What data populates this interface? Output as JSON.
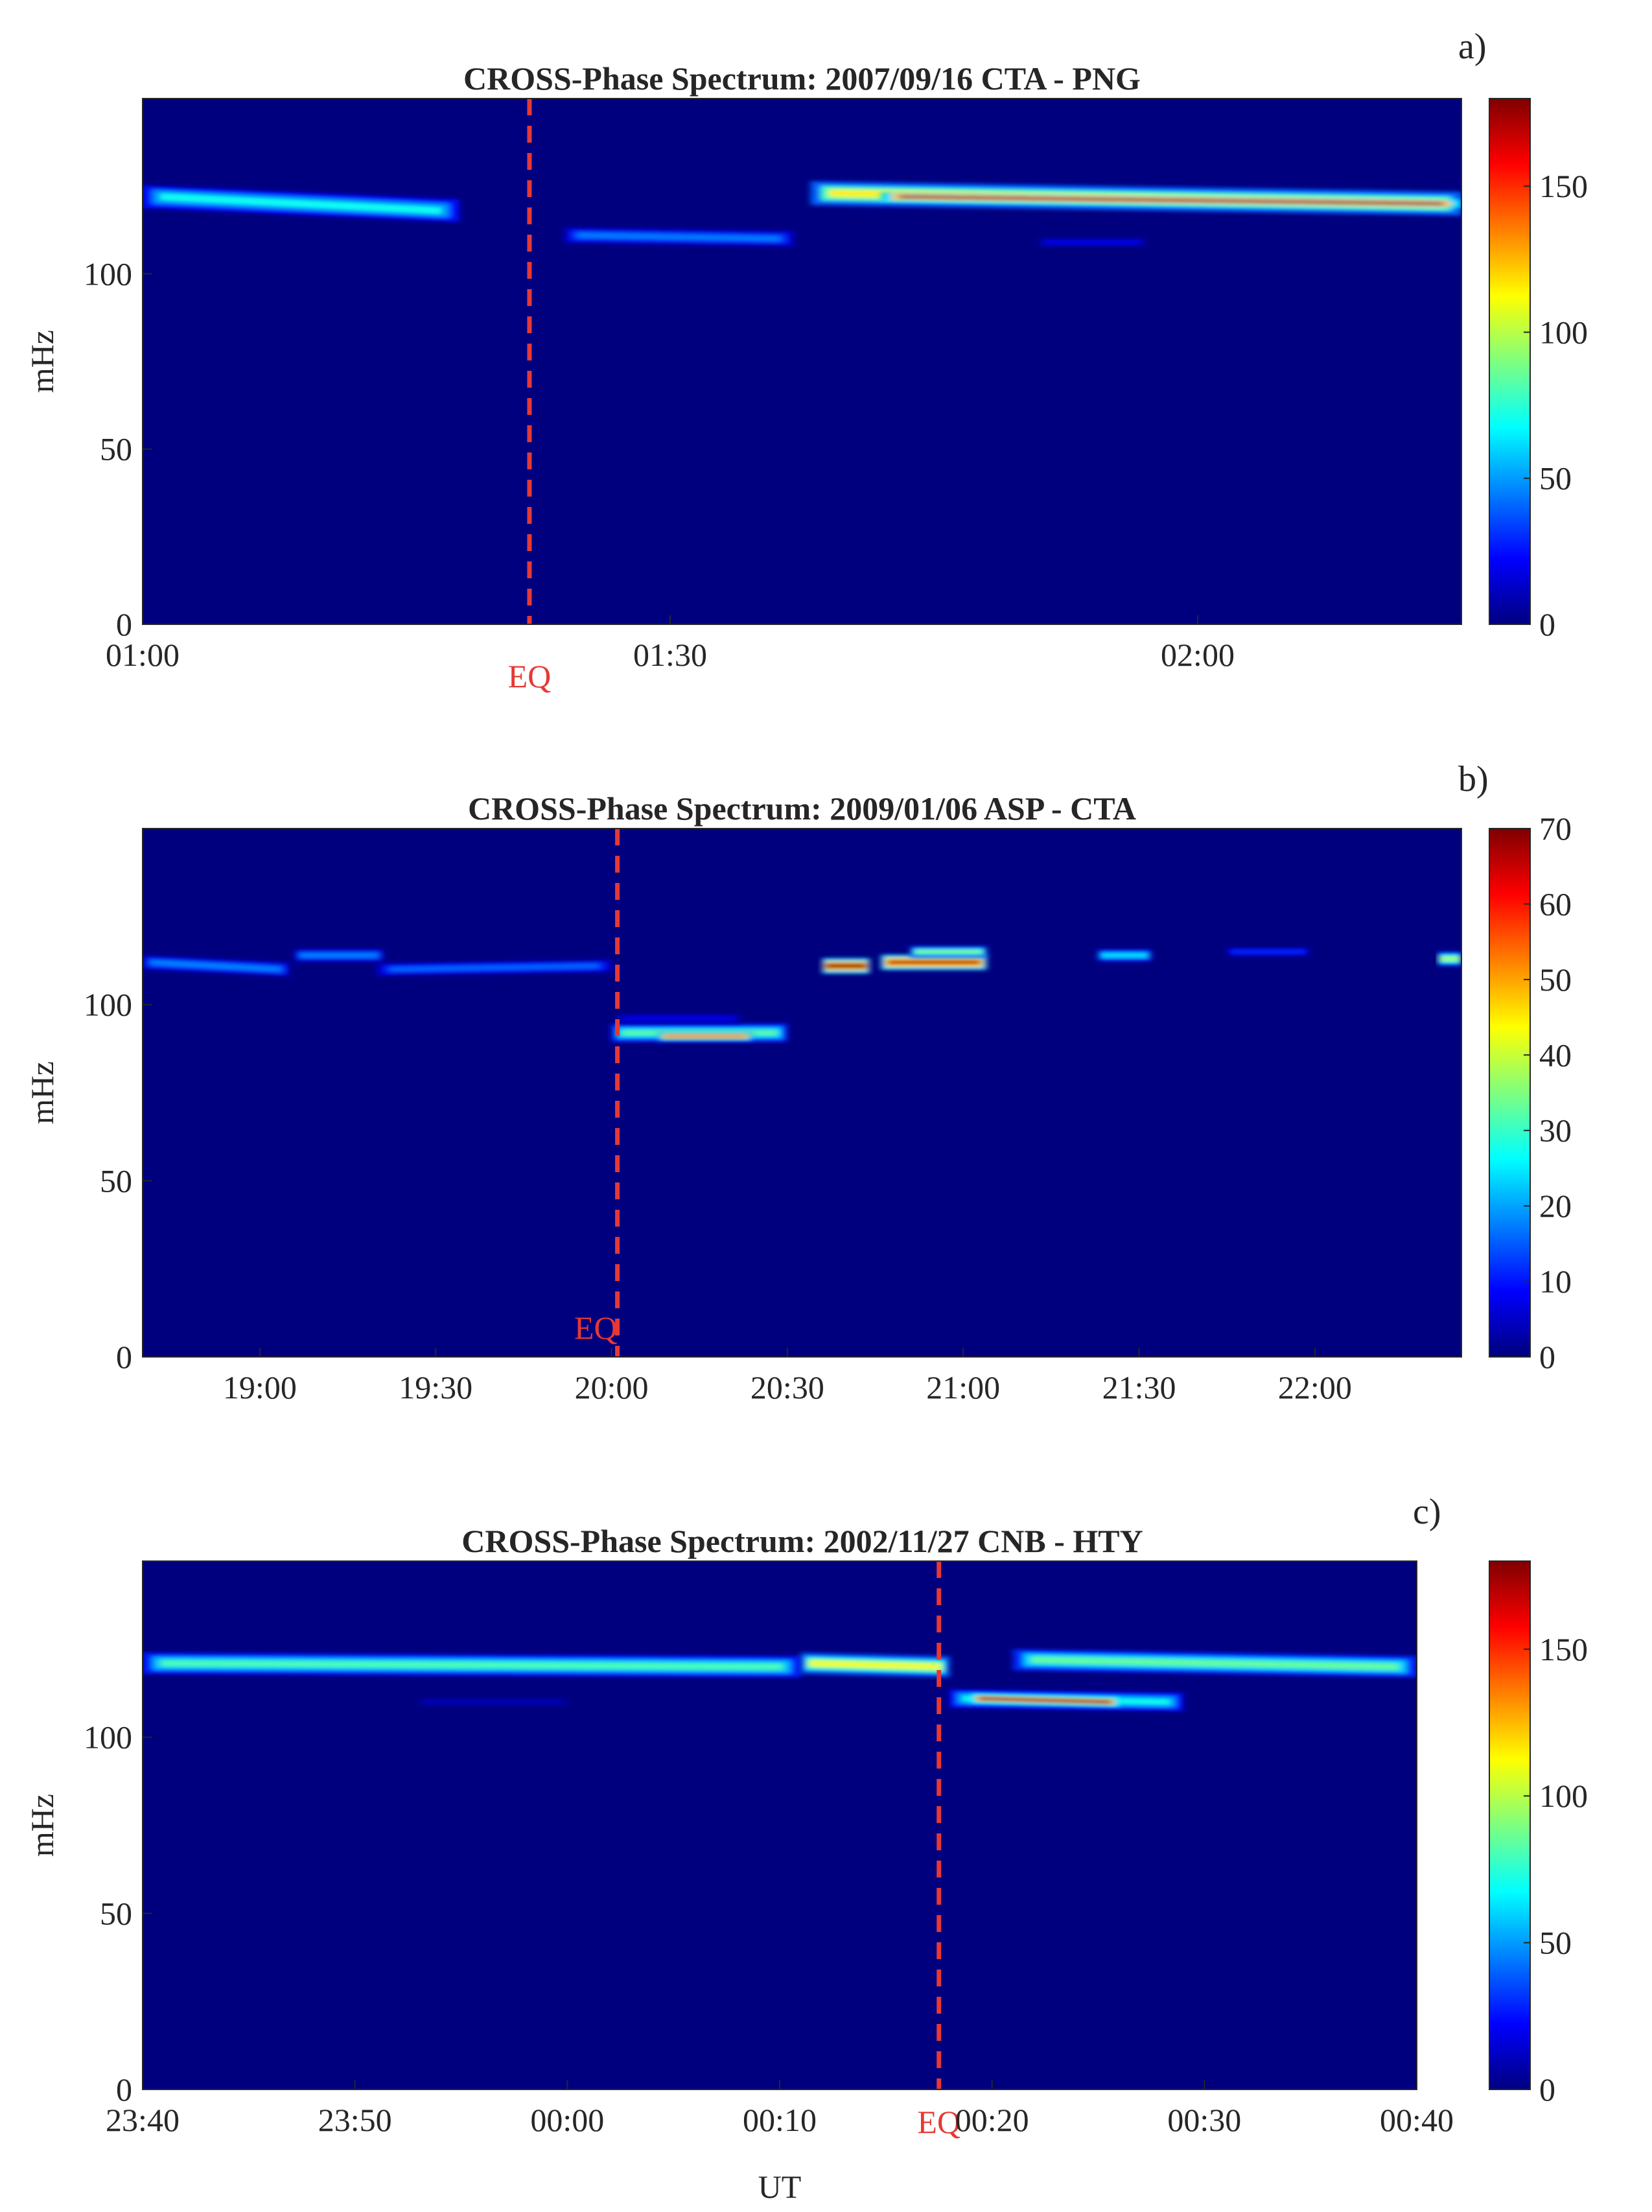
{
  "figure": {
    "xlabel": "UT"
  },
  "colormap": [
    "#00007f",
    "#0000ff",
    "#007fff",
    "#00ffff",
    "#7fff7f",
    "#ffff00",
    "#ff7f00",
    "#ff0000",
    "#7f0000"
  ],
  "background_color": "#00007f",
  "eq_line_color": "#e53935",
  "chart_data": [
    {
      "type": "heatmap",
      "panel_label": "a)",
      "title": "CROSS-Phase Spectrum: 2007/09/16 CTA - PNG",
      "ylabel": "mHz",
      "ylim": [
        0,
        150
      ],
      "y_ticks": [
        0,
        50,
        100
      ],
      "x_range_minutes": [
        60,
        135
      ],
      "x_ticks": [
        {
          "minute": 60,
          "label": "01:00"
        },
        {
          "minute": 90,
          "label": "01:30"
        },
        {
          "minute": 120,
          "label": "02:00"
        }
      ],
      "eq_minute": 82,
      "eq_label": "EQ",
      "colorbar": {
        "min": 0,
        "max": 180,
        "ticks": [
          0,
          50,
          100,
          150
        ]
      },
      "bands": [
        {
          "x0": 60,
          "x1": 78,
          "f0": 122,
          "f1": 118,
          "width": 3.2,
          "peak": 70
        },
        {
          "x0": 84,
          "x1": 97,
          "f0": 111,
          "f1": 110,
          "width": 2.2,
          "peak": 45
        },
        {
          "x0": 98,
          "x1": 135,
          "f0": 123,
          "f1": 120,
          "width": 3.4,
          "peak": 115
        },
        {
          "x0": 102,
          "x1": 135,
          "f0": 122,
          "f1": 120,
          "width": 1.3,
          "peak": 175
        },
        {
          "x0": 111,
          "x1": 117,
          "f0": 109,
          "f1": 109,
          "width": 1.2,
          "peak": 20
        }
      ]
    },
    {
      "type": "heatmap",
      "panel_label": "b)",
      "title": "CROSS-Phase Spectrum: 2009/01/06 ASP - CTA",
      "ylabel": "mHz",
      "ylim": [
        0,
        150
      ],
      "y_ticks": [
        0,
        50,
        100
      ],
      "x_range_minutes": [
        1120,
        1345
      ],
      "x_ticks": [
        {
          "minute": 1140,
          "label": "19:00"
        },
        {
          "minute": 1170,
          "label": "19:30"
        },
        {
          "minute": 1200,
          "label": "20:00"
        },
        {
          "minute": 1230,
          "label": "20:30"
        },
        {
          "minute": 1260,
          "label": "21:00"
        },
        {
          "minute": 1290,
          "label": "21:30"
        },
        {
          "minute": 1320,
          "label": "22:00"
        }
      ],
      "eq_minute": 1201,
      "eq_label": "EQ",
      "colorbar": {
        "min": 0,
        "max": 70,
        "ticks": [
          0,
          10,
          20,
          30,
          40,
          50,
          60,
          70
        ]
      },
      "bands": [
        {
          "x0": 1120,
          "x1": 1145,
          "f0": 112,
          "f1": 110,
          "width": 2.0,
          "peak": 18
        },
        {
          "x0": 1146,
          "x1": 1161,
          "f0": 114,
          "f1": 114,
          "width": 1.8,
          "peak": 18
        },
        {
          "x0": 1160,
          "x1": 1200,
          "f0": 110,
          "f1": 111,
          "width": 1.8,
          "peak": 16
        },
        {
          "x0": 1200,
          "x1": 1230,
          "f0": 92,
          "f1": 92,
          "width": 2.6,
          "peak": 32
        },
        {
          "x0": 1208,
          "x1": 1224,
          "f0": 91,
          "f1": 91,
          "width": 1.3,
          "peak": 55
        },
        {
          "x0": 1201,
          "x1": 1222,
          "f0": 96,
          "f1": 96,
          "width": 1.3,
          "peak": 8
        },
        {
          "x0": 1236,
          "x1": 1244,
          "f0": 111,
          "f1": 111,
          "width": 2.2,
          "peak": 68
        },
        {
          "x0": 1246,
          "x1": 1264,
          "f0": 112,
          "f1": 112,
          "width": 2.2,
          "peak": 65
        },
        {
          "x0": 1251,
          "x1": 1264,
          "f0": 115,
          "f1": 115,
          "width": 1.6,
          "peak": 35
        },
        {
          "x0": 1283,
          "x1": 1292,
          "f0": 114,
          "f1": 114,
          "width": 1.7,
          "peak": 25
        },
        {
          "x0": 1305,
          "x1": 1319,
          "f0": 115,
          "f1": 115,
          "width": 1.2,
          "peak": 12
        },
        {
          "x0": 1341,
          "x1": 1345,
          "f0": 113,
          "f1": 113,
          "width": 2.0,
          "peak": 38
        }
      ]
    },
    {
      "type": "heatmap",
      "panel_label": "c)",
      "title": "CROSS-Phase Spectrum: 2002/11/27 CNB - HTY",
      "ylabel": "mHz",
      "xlabel": "UT",
      "ylim": [
        0,
        150
      ],
      "y_ticks": [
        0,
        50,
        100
      ],
      "x_range_minutes": [
        1420,
        1480
      ],
      "x_ticks": [
        {
          "minute": 1420,
          "label": "23:40"
        },
        {
          "minute": 1430,
          "label": "23:50"
        },
        {
          "minute": 1440,
          "label": "00:00"
        },
        {
          "minute": 1450,
          "label": "00:10"
        },
        {
          "minute": 1460,
          "label": "00:20"
        },
        {
          "minute": 1470,
          "label": "00:30"
        },
        {
          "minute": 1480,
          "label": "00:40"
        }
      ],
      "eq_minute": 1457.5,
      "eq_label": "EQ",
      "colorbar": {
        "min": 0,
        "max": 180,
        "ticks": [
          0,
          50,
          100,
          150
        ]
      },
      "bands": [
        {
          "x0": 1420,
          "x1": 1451,
          "f0": 121,
          "f1": 120,
          "width": 3.0,
          "peak": 80
        },
        {
          "x0": 1451,
          "x1": 1458,
          "f0": 121,
          "f1": 120,
          "width": 3.0,
          "peak": 110
        },
        {
          "x0": 1458,
          "x1": 1469,
          "f0": 111,
          "f1": 110,
          "width": 2.6,
          "peak": 70
        },
        {
          "x0": 1459,
          "x1": 1466,
          "f0": 111,
          "f1": 110,
          "width": 1.4,
          "peak": 178
        },
        {
          "x0": 1461,
          "x1": 1480,
          "f0": 122,
          "f1": 120,
          "width": 3.0,
          "peak": 85
        },
        {
          "x0": 1433,
          "x1": 1440,
          "f0": 110,
          "f1": 110,
          "width": 1.0,
          "peak": 12
        }
      ]
    }
  ]
}
